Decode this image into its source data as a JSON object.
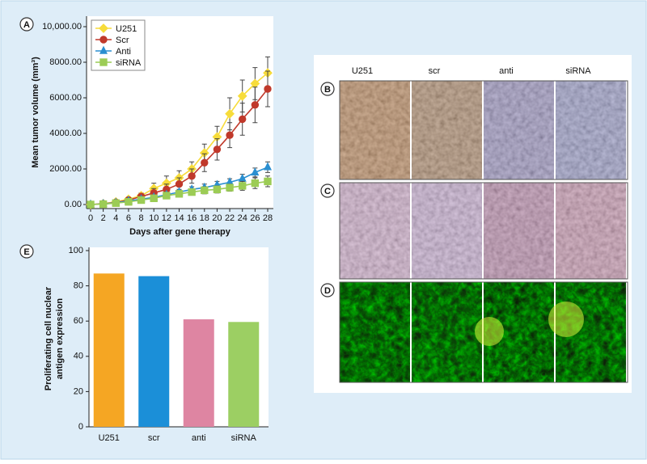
{
  "chart_data": [
    {
      "type": "line",
      "label": "A",
      "x_label": "Days after gene therapy",
      "y_label": "Mean tumor volume (mm³)",
      "x": [
        0,
        2,
        4,
        6,
        8,
        10,
        12,
        14,
        16,
        18,
        20,
        22,
        24,
        26,
        28
      ],
      "xlim": [
        0,
        28
      ],
      "xticks": [
        0,
        2,
        4,
        6,
        8,
        10,
        12,
        14,
        16,
        18,
        20,
        22,
        24,
        26,
        28
      ],
      "ylim": [
        0,
        10000
      ],
      "yticks": [
        {
          "value": 0,
          "label": "0.00"
        },
        {
          "value": 2000,
          "label": "2000.00"
        },
        {
          "value": 4000,
          "label": "4000.00"
        },
        {
          "value": 6000,
          "label": "6000.00"
        },
        {
          "value": 8000,
          "label": "8000.00"
        },
        {
          "value": 10000,
          "label": "10,000.00"
        }
      ],
      "grid": false,
      "legend": "upper left",
      "series": [
        {
          "name": "U251",
          "color": "#f7dc3a",
          "marker": "diamond",
          "values": [
            0,
            50,
            150,
            300,
            500,
            900,
            1200,
            1500,
            2000,
            2900,
            3800,
            5100,
            6100,
            6800,
            7400
          ],
          "errors": [
            30,
            50,
            80,
            100,
            150,
            300,
            400,
            400,
            400,
            500,
            600,
            900,
            900,
            900,
            900
          ]
        },
        {
          "name": "Scr",
          "color": "#c0392b",
          "marker": "circle",
          "values": [
            0,
            40,
            120,
            250,
            450,
            650,
            850,
            1150,
            1600,
            2350,
            3100,
            3900,
            4800,
            5600,
            6500
          ],
          "errors": [
            30,
            50,
            80,
            100,
            150,
            250,
            300,
            350,
            400,
            500,
            600,
            700,
            900,
            1000,
            1000
          ]
        },
        {
          "name": "Anti",
          "color": "#2a8fd0",
          "marker": "triangle",
          "values": [
            0,
            30,
            100,
            200,
            300,
            400,
            550,
            700,
            850,
            950,
            1100,
            1250,
            1450,
            1800,
            2100
          ],
          "errors": [
            20,
            30,
            50,
            60,
            80,
            100,
            150,
            150,
            150,
            200,
            200,
            200,
            250,
            250,
            300
          ]
        },
        {
          "name": "siRNA",
          "color": "#9ccc55",
          "marker": "square",
          "values": [
            0,
            20,
            80,
            150,
            250,
            350,
            500,
            600,
            700,
            800,
            850,
            950,
            1050,
            1200,
            1300
          ],
          "errors": [
            20,
            30,
            50,
            60,
            80,
            100,
            150,
            150,
            150,
            200,
            200,
            200,
            250,
            300,
            300
          ]
        }
      ]
    },
    {
      "type": "bar",
      "label": "E",
      "y_label": [
        "Proliferating cell nuclear",
        "antigen expression"
      ],
      "categories": [
        "U251",
        "scr",
        "anti",
        "siRNA"
      ],
      "values": [
        87,
        85.5,
        61,
        59.5
      ],
      "colors": [
        "#f5a623",
        "#1b8fd8",
        "#de85a2",
        "#9ccf63"
      ],
      "ylim": [
        0,
        100
      ],
      "yticks": [
        0,
        20,
        40,
        60,
        80,
        100
      ],
      "grid": false
    }
  ],
  "micrographs": {
    "columns": [
      "U251",
      "scr",
      "anti",
      "siRNA"
    ],
    "rows": [
      "B",
      "C",
      "D"
    ]
  }
}
